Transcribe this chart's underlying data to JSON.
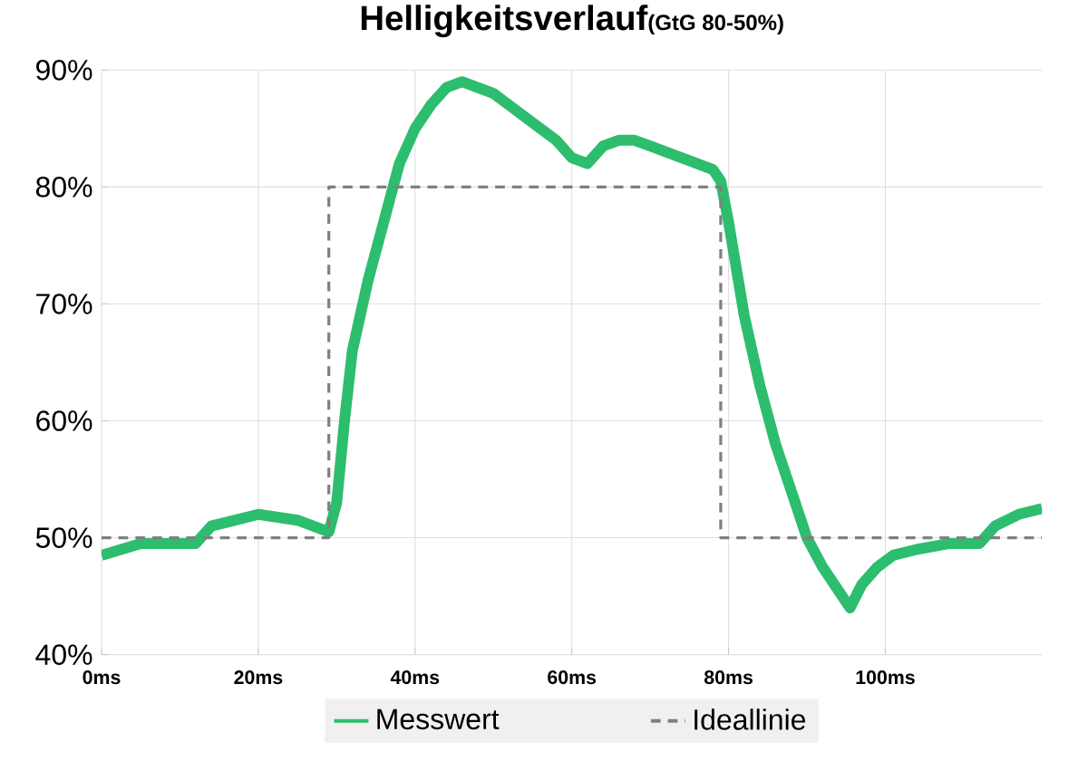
{
  "chart_data": {
    "type": "line",
    "title": "Helligkeitsverlauf",
    "subtitle": "(GtG 80-50%)",
    "xlim": [
      0,
      120
    ],
    "ylim": [
      40,
      90
    ],
    "xticks": [
      {
        "value": 0,
        "label": "0ms"
      },
      {
        "value": 20,
        "label": "20ms"
      },
      {
        "value": 40,
        "label": "40ms"
      },
      {
        "value": 60,
        "label": "60ms"
      },
      {
        "value": 80,
        "label": "80ms"
      },
      {
        "value": 100,
        "label": "100ms"
      }
    ],
    "yticks": [
      {
        "value": 40,
        "label": "40%"
      },
      {
        "value": 50,
        "label": "50%"
      },
      {
        "value": 60,
        "label": "60%"
      },
      {
        "value": 70,
        "label": "70%"
      },
      {
        "value": 80,
        "label": "80%"
      },
      {
        "value": 90,
        "label": "90%"
      }
    ],
    "grid": true,
    "legend": "bottom",
    "marker": "none",
    "series": [
      {
        "name": "Messwert",
        "color": "#2dbd6e",
        "line_style": "solid",
        "x": [
          0,
          5,
          12,
          14,
          20,
          25,
          29,
          30,
          31,
          32,
          34,
          36,
          38,
          40,
          42,
          44,
          46,
          48,
          50,
          52,
          54,
          56,
          58,
          60,
          62,
          64,
          66,
          68,
          70,
          72,
          74,
          76,
          78,
          79,
          80,
          81,
          82,
          84,
          86,
          88,
          90,
          92,
          94,
          95.5,
          97,
          99,
          101,
          104,
          108,
          112,
          114,
          117,
          120
        ],
        "values": [
          48.5,
          49.5,
          49.5,
          51,
          52,
          51.5,
          50.5,
          53,
          60,
          66,
          72,
          77,
          82,
          85,
          87,
          88.5,
          89,
          88.5,
          88,
          87,
          86,
          85,
          84,
          82.5,
          82,
          83.5,
          84,
          84,
          83.5,
          83,
          82.5,
          82,
          81.5,
          80.5,
          77,
          73,
          69,
          63,
          58,
          54,
          50,
          47.5,
          45.5,
          44,
          46,
          47.5,
          48.5,
          49,
          49.5,
          49.5,
          51,
          52,
          52.5
        ]
      },
      {
        "name": "Ideallinie",
        "color": "#7f7f7f",
        "line_style": "dashed",
        "x": [
          0,
          29,
          29,
          79,
          79,
          120
        ],
        "values": [
          50,
          50,
          80,
          80,
          50,
          50
        ]
      }
    ]
  }
}
